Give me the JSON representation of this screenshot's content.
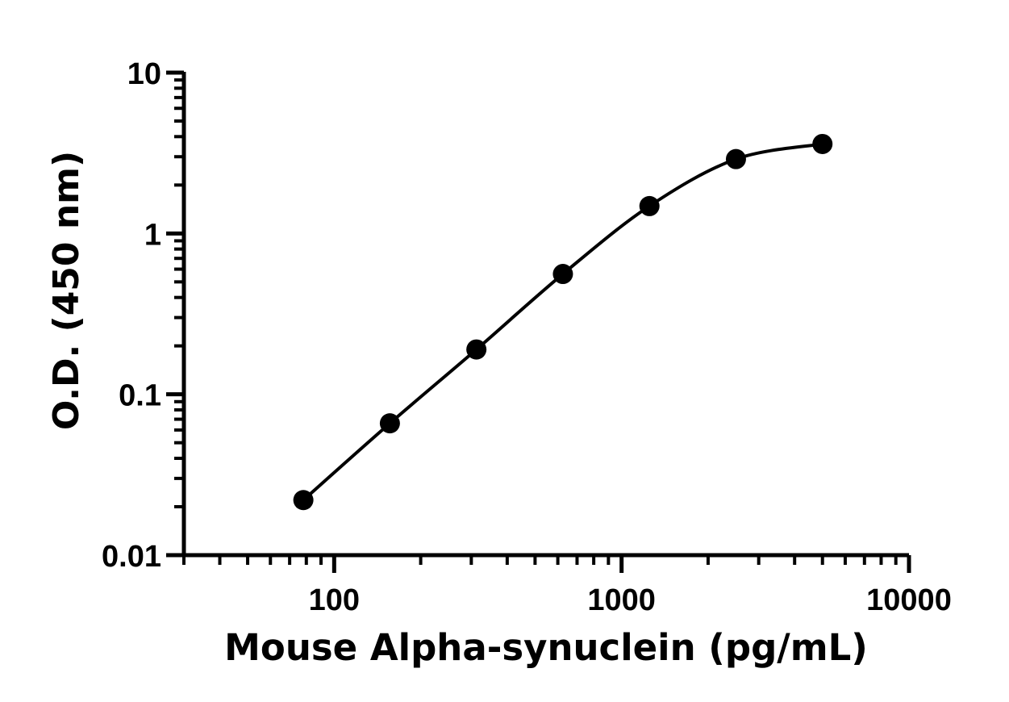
{
  "chart_data": {
    "type": "scatter",
    "title": "",
    "xlabel": "Mouse Alpha-synuclein (pg/mL)",
    "ylabel": "O.D. (450 nm)",
    "x_scale": "log",
    "y_scale": "log",
    "xlim": [
      30,
      10000
    ],
    "ylim": [
      0.01,
      10
    ],
    "x_ticks": [
      {
        "value": 100,
        "label": "100"
      },
      {
        "value": 1000,
        "label": "1000"
      },
      {
        "value": 10000,
        "label": "10000"
      }
    ],
    "y_ticks": [
      {
        "value": 0.01,
        "label": "0.01"
      },
      {
        "value": 0.1,
        "label": "0.1"
      },
      {
        "value": 1,
        "label": "1"
      },
      {
        "value": 10,
        "label": "10"
      }
    ],
    "grid": false,
    "legend": "none",
    "series": [
      {
        "x": [
          78.125,
          156.25,
          312.5,
          625,
          1250,
          2500,
          5000
        ],
        "y": [
          0.022,
          0.066,
          0.19,
          0.56,
          1.48,
          2.9,
          3.6
        ]
      }
    ],
    "fit": "4PL curve",
    "colors": {
      "marker": "#000000",
      "line": "#000000",
      "axis": "#000000"
    }
  }
}
